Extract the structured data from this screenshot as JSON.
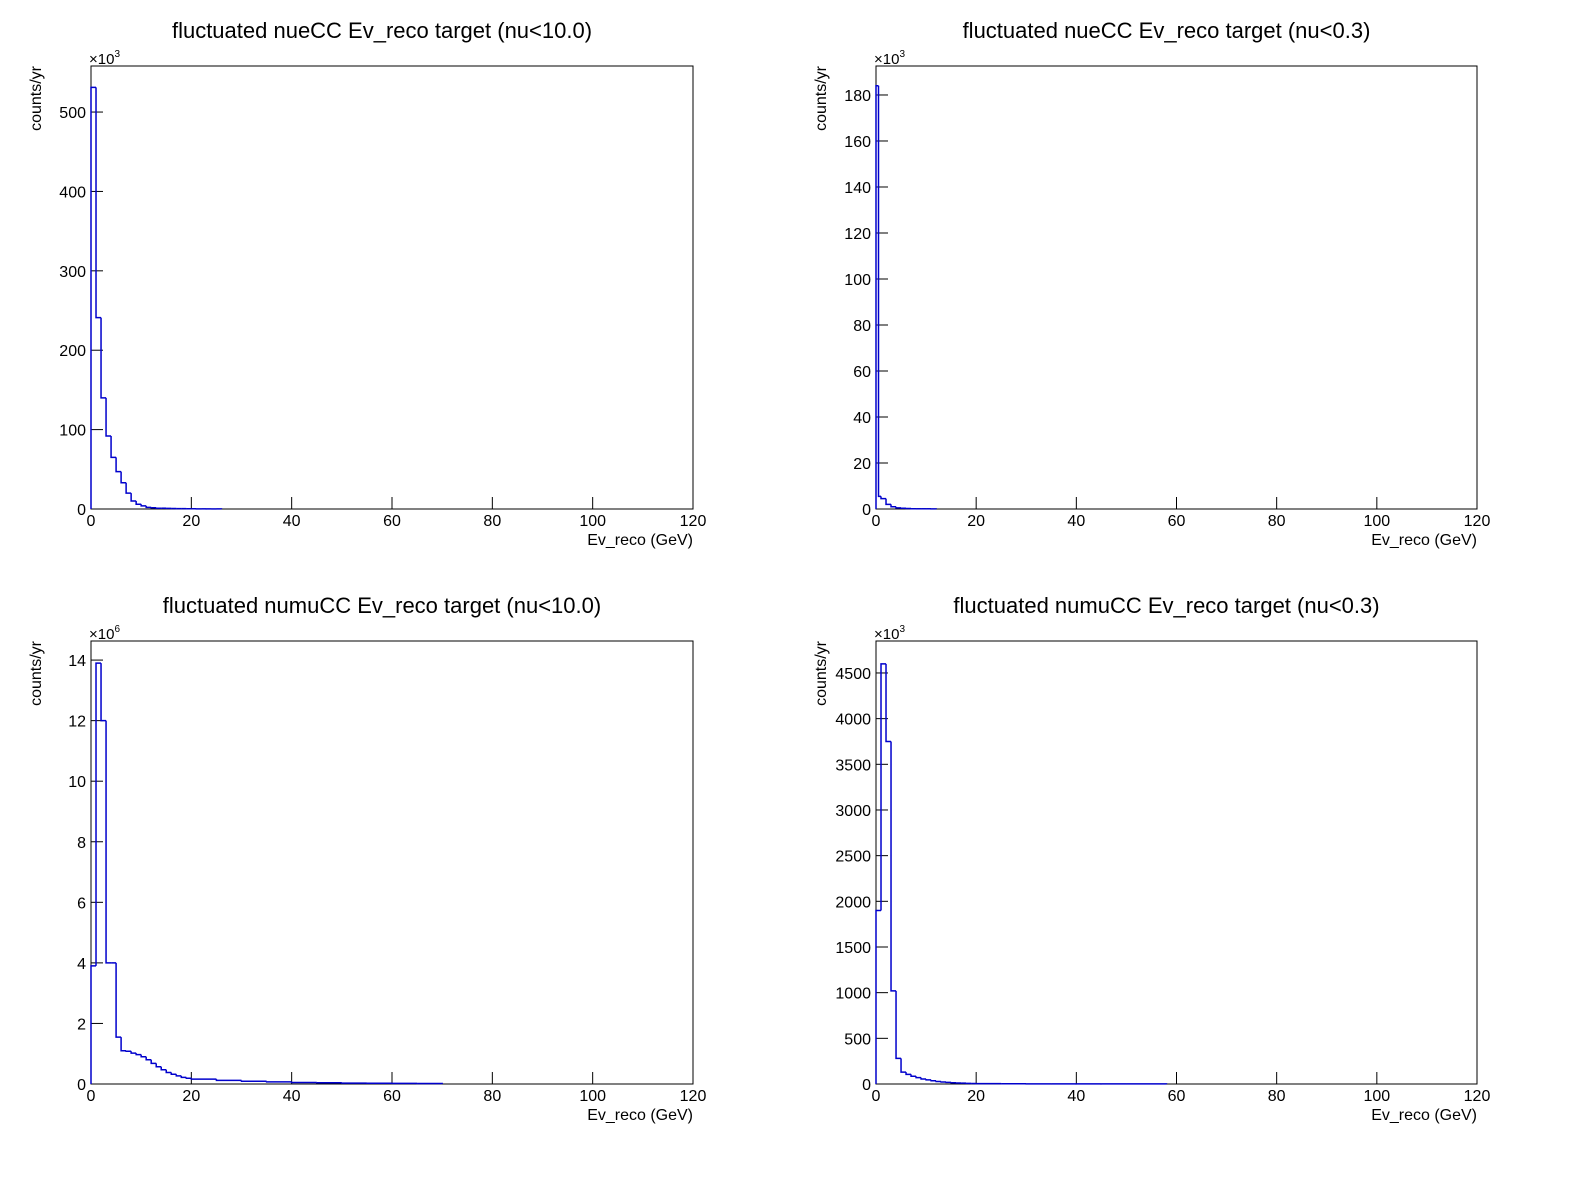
{
  "chart_data": [
    {
      "type": "histogram",
      "title": "fluctuated nueCC Ev_reco target (nu<10.0)",
      "x_label": "Ev_reco (GeV)",
      "y_label": "counts/yr",
      "y_multiplier": {
        "base": "×10",
        "exponent": "3"
      },
      "color": "#0000cc",
      "xlim": [
        0,
        120
      ],
      "xticks": [
        0,
        20,
        40,
        60,
        80,
        100,
        120
      ],
      "ylim": [
        0,
        558
      ],
      "yticks": [
        0,
        100,
        200,
        300,
        400,
        500
      ],
      "bins": [
        0,
        1,
        2,
        3,
        4,
        5,
        6,
        7,
        8,
        9,
        10,
        11,
        12,
        13,
        14,
        15,
        16,
        17,
        18,
        19,
        20,
        21,
        22,
        23,
        24,
        25,
        26
      ],
      "values": [
        531,
        241,
        140,
        92,
        65,
        47,
        33,
        20,
        10,
        6,
        4,
        2,
        1.5,
        1,
        1,
        0.8,
        0.6,
        0.5,
        0.4,
        0.3,
        0.3,
        0.2,
        0.2,
        0.1,
        0.1,
        0.1
      ]
    },
    {
      "type": "histogram",
      "title": "fluctuated nueCC Ev_reco target (nu<0.3)",
      "x_label": "Ev_reco (GeV)",
      "y_label": "counts/yr",
      "y_multiplier": {
        "base": "×10",
        "exponent": "3"
      },
      "color": "#0000cc",
      "xlim": [
        0,
        120
      ],
      "xticks": [
        0,
        20,
        40,
        60,
        80,
        100,
        120
      ],
      "ylim": [
        0,
        192.6
      ],
      "yticks": [
        0,
        20,
        40,
        60,
        80,
        100,
        120,
        140,
        160,
        180
      ],
      "bins": [
        0,
        0.5,
        1,
        2,
        3,
        4,
        5,
        6,
        7,
        8,
        9,
        10,
        11,
        12
      ],
      "values": [
        184,
        5.5,
        4.5,
        2,
        1,
        0.5,
        0.3,
        0.2,
        0.1,
        0.1,
        0.1,
        0.1,
        0.05
      ]
    },
    {
      "type": "histogram",
      "title": "fluctuated numuCC Ev_reco target (nu<10.0)",
      "x_label": "Ev_reco (GeV)",
      "y_label": "counts/yr",
      "y_multiplier": {
        "base": "×10",
        "exponent": "6"
      },
      "color": "#0000cc",
      "xlim": [
        0,
        120
      ],
      "xticks": [
        0,
        20,
        40,
        60,
        80,
        100,
        120
      ],
      "ylim": [
        0,
        14.63
      ],
      "yticks": [
        0,
        2,
        4,
        6,
        8,
        10,
        12,
        14
      ],
      "bins": [
        0,
        1,
        2,
        3,
        4,
        5,
        6,
        7,
        8,
        9,
        10,
        11,
        12,
        13,
        14,
        15,
        16,
        17,
        18,
        19,
        20,
        25,
        30,
        35,
        40,
        45,
        50,
        55,
        60,
        65,
        70
      ],
      "values": [
        3.9,
        13.9,
        12.0,
        4.0,
        4.0,
        1.55,
        1.1,
        1.08,
        1.02,
        0.97,
        0.9,
        0.8,
        0.68,
        0.57,
        0.47,
        0.38,
        0.32,
        0.27,
        0.22,
        0.19,
        0.16,
        0.12,
        0.09,
        0.07,
        0.05,
        0.04,
        0.03,
        0.025,
        0.02,
        0.015
      ]
    },
    {
      "type": "histogram",
      "title": "fluctuated numuCC Ev_reco target (nu<0.3)",
      "x_label": "Ev_reco (GeV)",
      "y_label": "counts/yr",
      "y_multiplier": {
        "base": "×10",
        "exponent": "3"
      },
      "color": "#0000cc",
      "xlim": [
        0,
        120
      ],
      "xticks": [
        0,
        20,
        40,
        60,
        80,
        100,
        120
      ],
      "ylim": [
        0,
        4850
      ],
      "yticks": [
        0,
        500,
        1000,
        1500,
        2000,
        2500,
        3000,
        3500,
        4000,
        4500
      ],
      "bins": [
        0,
        1,
        2,
        3,
        4,
        5,
        6,
        7,
        8,
        9,
        10,
        11,
        12,
        13,
        14,
        15,
        16,
        17,
        18,
        19,
        20,
        25,
        30,
        35,
        40,
        45,
        50,
        58
      ],
      "values": [
        1900,
        4600,
        3750,
        1020,
        280,
        130,
        105,
        85,
        70,
        55,
        45,
        35,
        28,
        22,
        18,
        14,
        11,
        9,
        7,
        6,
        4,
        3,
        2,
        2,
        1.5,
        1,
        1
      ]
    }
  ]
}
